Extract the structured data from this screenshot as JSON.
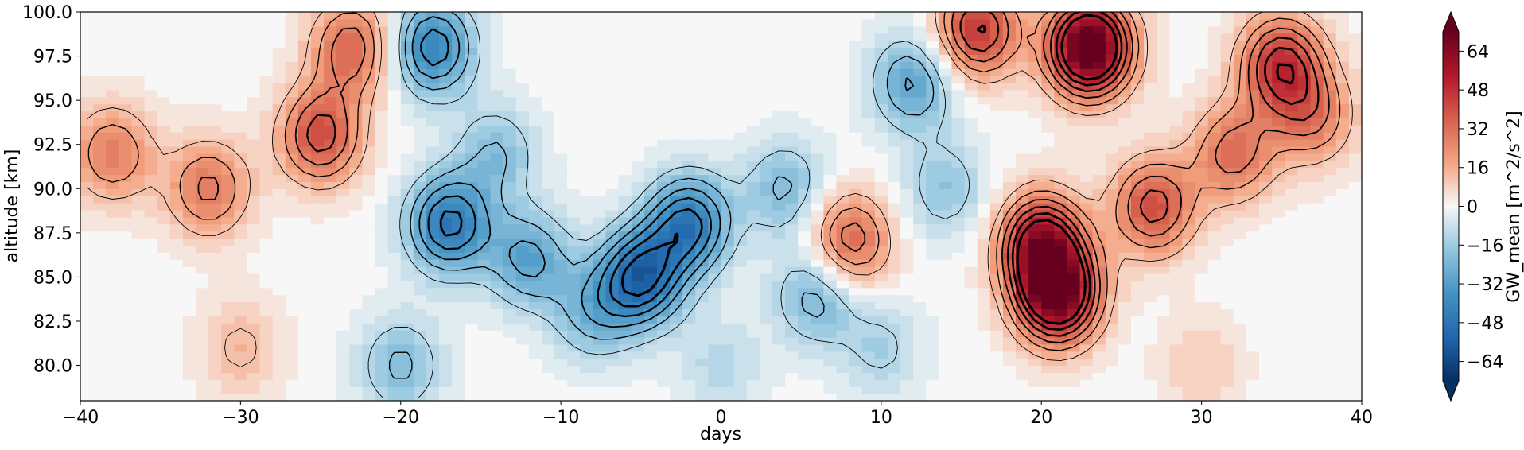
{
  "chart_data": {
    "type": "heatmap",
    "xlabel": "days",
    "ylabel": "altitude [km]",
    "xlim": [
      -40,
      40
    ],
    "ylim": [
      78,
      100
    ],
    "x_ticks": [
      -40,
      -30,
      -20,
      -10,
      0,
      10,
      20,
      30,
      40
    ],
    "x_tick_labels": [
      "−40",
      "−30",
      "−20",
      "−10",
      "0",
      "10",
      "20",
      "30",
      "40"
    ],
    "y_ticks": [
      80,
      82.5,
      85,
      87.5,
      90,
      92.5,
      95,
      97.5,
      100
    ],
    "y_tick_labels": [
      "80.0",
      "82.5",
      "85.0",
      "87.5",
      "90.0",
      "92.5",
      "95.0",
      "97.5",
      "100.0"
    ],
    "colorbar": {
      "label": "GW_mean [m^2/s^2]",
      "colormap": "RdBu_r",
      "min": -72,
      "max": 72,
      "extend": "both",
      "ticks": [
        -64,
        -48,
        -32,
        -16,
        0,
        16,
        32,
        48,
        64
      ],
      "tick_labels": [
        "−64",
        "−48",
        "−32",
        "−16",
        "0",
        "16",
        "32",
        "48",
        "64"
      ]
    },
    "anomalies": [
      {
        "day": -38,
        "alt": 92,
        "value": 28
      },
      {
        "day": -32,
        "alt": 90,
        "value": 30
      },
      {
        "day": -25,
        "alt": 93,
        "value": 40
      },
      {
        "day": -23,
        "alt": 98,
        "value": 34
      },
      {
        "day": -18,
        "alt": 98,
        "value": -42
      },
      {
        "day": -17,
        "alt": 88,
        "value": -46
      },
      {
        "day": -14,
        "alt": 92,
        "value": -20
      },
      {
        "day": -12,
        "alt": 86,
        "value": -30
      },
      {
        "day": -8,
        "alt": 83,
        "value": -22
      },
      {
        "day": -5,
        "alt": 85,
        "value": -52
      },
      {
        "day": -2,
        "alt": 88,
        "value": -46
      },
      {
        "day": 4,
        "alt": 90,
        "value": -22
      },
      {
        "day": 6,
        "alt": 84,
        "value": -26
      },
      {
        "day": 8,
        "alt": 87,
        "value": 36
      },
      {
        "day": 12,
        "alt": 96,
        "value": -30
      },
      {
        "day": 14,
        "alt": 90,
        "value": -18
      },
      {
        "day": 16,
        "alt": 99,
        "value": 46
      },
      {
        "day": 20,
        "alt": 87,
        "value": 56
      },
      {
        "day": 21,
        "alt": 84,
        "value": 70
      },
      {
        "day": 23,
        "alt": 98,
        "value": 80
      },
      {
        "day": 27,
        "alt": 89,
        "value": 40
      },
      {
        "day": 32,
        "alt": 92,
        "value": 32
      },
      {
        "day": 35,
        "alt": 97,
        "value": 48
      },
      {
        "day": 37,
        "alt": 94,
        "value": 26
      },
      {
        "day": -30,
        "alt": 81,
        "value": 14
      },
      {
        "day": -20,
        "alt": 80,
        "value": -22
      },
      {
        "day": 0,
        "alt": 80,
        "value": -12
      },
      {
        "day": 10,
        "alt": 81,
        "value": -14
      },
      {
        "day": 30,
        "alt": 80,
        "value": 10
      }
    ],
    "contour_levels": [
      12,
      20,
      28,
      36,
      44,
      52
    ]
  }
}
